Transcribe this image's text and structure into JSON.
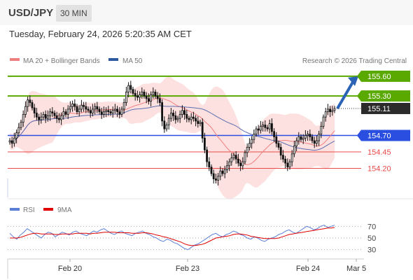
{
  "header": {
    "symbol": "USD/JPY",
    "timeframe": "30 MIN"
  },
  "timestamp": "Tuesday, February 24, 2026 5:20:35 AM CET",
  "legend": {
    "bollinger": {
      "label": "MA 20 + Bollinger Bands",
      "color": "#f08080"
    },
    "ma50": {
      "label": "MA 50",
      "color": "#2d5aa0"
    },
    "rsi": {
      "label": "RSI",
      "color": "#5b7fd6"
    },
    "rsi_ma": {
      "label": "9MA",
      "color": "#e00000"
    }
  },
  "watermark": "Research © 2026 Trading Central",
  "chart_data": [
    {
      "type": "candlestick",
      "title": "",
      "ylim": [
        153.78,
        155.78
      ],
      "current_price": {
        "value": 155.11,
        "label": "155.11"
      },
      "levels": [
        {
          "value": 155.6,
          "label": "155.60",
          "kind": "target",
          "color": "#5aa900"
        },
        {
          "value": 155.3,
          "label": "155.30",
          "kind": "target",
          "color": "#5aa900"
        },
        {
          "value": 154.7,
          "label": "154.70",
          "kind": "pivot",
          "color": "#2a4fe0"
        },
        {
          "value": 154.45,
          "label": "154.45",
          "kind": "support",
          "color": "#e84a4a"
        },
        {
          "value": 154.2,
          "label": "154.20",
          "kind": "support",
          "color": "#e84a4a"
        }
      ],
      "forecast_arrow": {
        "from": 155.11,
        "to": 155.6,
        "direction": "up"
      },
      "x_ticks": [
        "Feb 20",
        "Feb 23",
        "Feb 24",
        "Mar 5"
      ],
      "series_close": [
        154.62,
        154.58,
        154.66,
        154.74,
        154.82,
        154.9,
        155.02,
        155.14,
        155.24,
        155.2,
        155.12,
        155.04,
        154.98,
        154.94,
        154.98,
        155.02,
        154.96,
        155.0,
        155.06,
        155.04,
        155.0,
        154.96,
        154.94,
        155.0,
        155.06,
        155.02,
        155.1,
        155.14,
        155.18,
        155.14,
        155.06,
        155.1,
        155.16,
        155.14,
        155.1,
        155.08,
        155.04,
        155.1,
        155.14,
        155.1,
        155.06,
        155.02,
        155.06,
        155.08,
        155.06,
        155.04,
        155.08,
        155.1,
        155.06,
        155.02,
        155.1,
        155.2,
        155.36,
        155.46,
        155.4,
        155.34,
        155.3,
        155.28,
        155.32,
        155.36,
        155.3,
        155.26,
        155.22,
        155.32,
        155.36,
        155.3,
        155.26,
        155.2,
        154.92,
        154.8,
        154.86,
        154.96,
        155.04,
        155.0,
        154.94,
        154.96,
        155.02,
        155.08,
        155.02,
        154.96,
        154.94,
        154.98,
        154.96,
        154.92,
        154.88,
        154.9,
        154.66,
        154.48,
        154.3,
        154.22,
        154.12,
        154.04,
        154.02,
        154.08,
        154.16,
        154.12,
        154.18,
        154.24,
        154.3,
        154.36,
        154.4,
        154.34,
        154.28,
        154.24,
        154.3,
        154.44,
        154.52,
        154.58,
        154.64,
        154.72,
        154.8,
        154.78,
        154.84,
        154.86,
        154.82,
        154.8,
        154.88,
        154.76,
        154.68,
        154.58,
        154.52,
        154.4,
        154.34,
        154.28,
        154.22,
        154.3,
        154.42,
        154.54,
        154.62,
        154.68,
        154.64,
        154.66,
        154.7,
        154.72,
        154.68,
        154.62,
        154.58,
        154.62,
        154.72,
        154.84,
        154.98,
        155.06,
        155.1,
        155.06,
        155.08,
        155.11
      ],
      "ma20_start": 154.52,
      "ma20_end": 154.8,
      "ma50_start": 154.62,
      "ma50_end": 154.68
    },
    {
      "type": "line",
      "title": "RSI",
      "ylim": [
        20,
        80
      ],
      "y_ticks": [
        70,
        50,
        30
      ],
      "series": [
        {
          "name": "RSI",
          "values": [
            58,
            52,
            48,
            55,
            60,
            66,
            62,
            58,
            54,
            50,
            56,
            60,
            58,
            52,
            56,
            60,
            58,
            55,
            60,
            62,
            58,
            56,
            54,
            58,
            62,
            60,
            64,
            66,
            62,
            58,
            56,
            60,
            62,
            58,
            56,
            54,
            58,
            60,
            62,
            58,
            56,
            52,
            50,
            46,
            44,
            48,
            46,
            42,
            40,
            36,
            32,
            30,
            34,
            38,
            40,
            44,
            48,
            52,
            56,
            58,
            54,
            52,
            56,
            58,
            62,
            60,
            56,
            54,
            50,
            48,
            52,
            50,
            46,
            44,
            48,
            50,
            52,
            56,
            58,
            62,
            64,
            60,
            58,
            62,
            66,
            70,
            68,
            64,
            66,
            70,
            72,
            68,
            70,
            72
          ]
        },
        {
          "name": "9MA",
          "values": [
            50,
            50,
            50,
            51,
            53,
            55,
            57,
            58,
            58,
            57,
            57,
            57,
            57,
            56,
            56,
            57,
            57,
            57,
            57,
            58,
            58,
            58,
            58,
            57,
            58,
            58,
            59,
            60,
            60,
            60,
            60,
            59,
            59,
            59,
            59,
            58,
            58,
            58,
            59,
            59,
            58,
            57,
            55,
            54,
            52,
            51,
            49,
            47,
            45,
            43,
            40,
            38,
            37,
            37,
            38,
            39,
            41,
            44,
            47,
            50,
            51,
            52,
            53,
            54,
            56,
            57,
            57,
            56,
            55,
            53,
            52,
            51,
            50,
            49,
            49,
            49,
            49,
            50,
            52,
            54,
            56,
            57,
            58,
            59,
            60,
            61,
            62,
            63,
            64,
            65,
            66,
            67,
            67,
            68
          ]
        }
      ]
    }
  ]
}
